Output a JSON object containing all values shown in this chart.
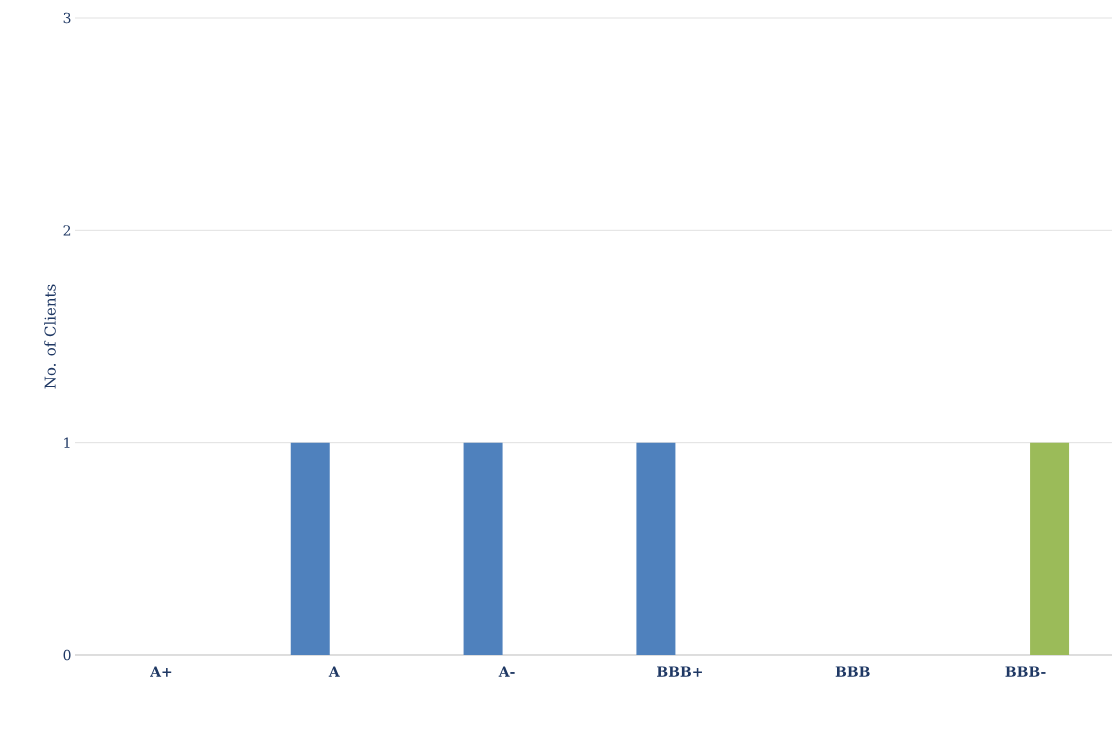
{
  "chart_data": {
    "type": "bar",
    "ylabel": "No. of Clients",
    "categories": [
      "A+",
      "A",
      "A-",
      "BBB+",
      "BBB",
      "BBB-"
    ],
    "series": [
      {
        "color": "#4f81bd",
        "values": [
          0,
          1,
          1,
          1,
          0,
          0
        ]
      },
      {
        "color": "#9bbb59",
        "values": [
          0,
          0,
          0,
          0,
          0,
          1
        ]
      }
    ],
    "ylim": [
      0,
      3
    ],
    "yticks": [
      0,
      1,
      2,
      3
    ],
    "grid": "y"
  }
}
